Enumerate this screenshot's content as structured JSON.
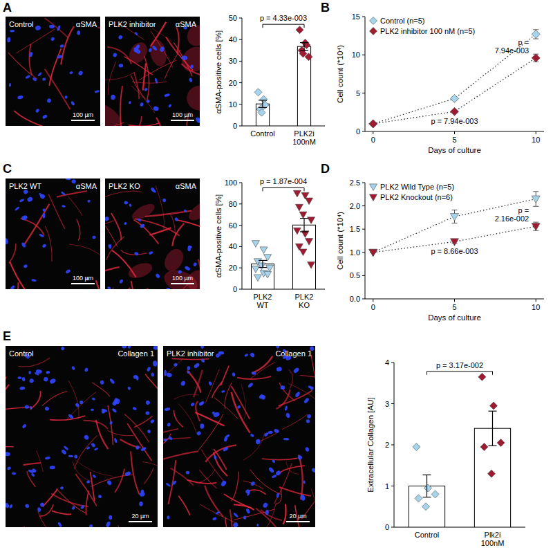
{
  "panel_labels": [
    "A",
    "B",
    "C",
    "D",
    "E"
  ],
  "images": [
    {
      "label": "Control",
      "stain": "αSMA",
      "scale_bar": "100 µm"
    },
    {
      "label": "PLK2 inhibitor",
      "stain": "αSMA",
      "scale_bar": "100 µm"
    },
    {
      "label": "PLK2 WT",
      "stain": "αSMA",
      "scale_bar": "100 µm"
    },
    {
      "label": "PLK2 KO",
      "stain": "αSMA",
      "scale_bar": "100 µm"
    },
    {
      "label": "Control",
      "stain": "Collagen 1",
      "scale_bar": "20 µm"
    },
    {
      "label": "PLK2 inhibitor",
      "stain": "Collagen 1",
      "scale_bar": "20 µm"
    }
  ],
  "chart_data": [
    {
      "type": "bar",
      "ylabel": "αSMA-positive cells [%]",
      "categories": [
        "Control",
        "PLK2i 100nM"
      ],
      "values": [
        10.2,
        36.8
      ],
      "errors": [
        1.7,
        1.8
      ],
      "points": [
        [
          15.6,
          12.3,
          9.7,
          7.8,
          6.2
        ],
        [
          44.5,
          38.5,
          37.5,
          35,
          33.5,
          32
        ]
      ],
      "colors": [
        "#a6d4ec",
        "#9e1b32"
      ],
      "marker": "diamond",
      "annotation": "p = 4.33e-003",
      "ylim": [
        0,
        50
      ],
      "yticks": [
        0,
        10,
        20,
        30,
        40,
        50
      ]
    },
    {
      "type": "line",
      "xlabel": "Days of culture",
      "ylabel": "Cell count (*10⁴)",
      "x": [
        0,
        5,
        10
      ],
      "series": [
        {
          "name": "Control (n=5)",
          "color": "#a6d4ec",
          "marker": "diamond",
          "line_style": "dotted",
          "values": [
            1,
            4.3,
            12.7
          ],
          "errors": [
            0,
            0.2,
            0.6
          ]
        },
        {
          "name": "PLK2 inhibitor 100 nM (n=5)",
          "color": "#9e1b32",
          "marker": "diamond",
          "line_style": "dotted",
          "values": [
            1,
            2.6,
            9.6
          ],
          "errors": [
            0,
            0.15,
            0.5
          ]
        }
      ],
      "annotations": [
        {
          "text": "p = 7.94e-003",
          "x": 5
        },
        {
          "text": "p = 7.94e-003",
          "x": 10
        }
      ],
      "xlim": [
        -0.5,
        10.5
      ],
      "xticks": [
        0,
        5,
        10
      ],
      "ylim": [
        0,
        15
      ],
      "yticks": [
        0,
        5,
        10,
        15
      ],
      "legend": "upper left"
    },
    {
      "type": "bar",
      "ylabel": "αSMA-positive cells [%]",
      "categories": [
        "PLK2 WT",
        "PLK2 KO"
      ],
      "values": [
        23.7,
        60.2
      ],
      "errors": [
        3.3,
        6.3
      ],
      "points": [
        [
          43,
          37,
          30,
          26,
          22,
          20,
          19,
          15,
          14,
          11
        ],
        [
          90,
          88,
          83,
          77,
          70,
          65,
          55,
          52,
          45,
          40,
          35,
          23
        ]
      ],
      "colors": [
        "#a6d4ec",
        "#9e1b32"
      ],
      "marker": "triangle-down",
      "annotation": "p = 1.87e-004",
      "ylim": [
        0,
        100
      ],
      "yticks": [
        0,
        20,
        40,
        60,
        80,
        100
      ]
    },
    {
      "type": "line",
      "xlabel": "Days of culture",
      "ylabel": "Cell count (*10⁴)",
      "x": [
        0,
        5,
        10
      ],
      "series": [
        {
          "name": "PLK2 Wild Type (n=5)",
          "color": "#a6d4ec",
          "marker": "triangle-down",
          "line_style": "dotted",
          "values": [
            1,
            1.77,
            2.15
          ],
          "errors": [
            0,
            0.14,
            0.16
          ]
        },
        {
          "name": "PLK2 Knockout (n=6)",
          "color": "#9e1b32",
          "marker": "triangle-down",
          "line_style": "dotted",
          "values": [
            1,
            1.23,
            1.56
          ],
          "errors": [
            0,
            0.03,
            0.09
          ]
        }
      ],
      "annotations": [
        {
          "text": "p = 8.66e-003",
          "x": 5
        },
        {
          "text": "p = 2.16e-002",
          "x": 10
        }
      ],
      "xlim": [
        -0.5,
        10.5
      ],
      "xticks": [
        0,
        5,
        10
      ],
      "ylim": [
        0,
        2.5
      ],
      "yticks": [
        {
          "value": 0,
          "label": "0.0"
        },
        {
          "value": 0.5,
          "label": "0.5"
        },
        {
          "value": 1,
          "label": "1.0"
        },
        {
          "value": 1.5,
          "label": "1.5"
        },
        {
          "value": 2,
          "label": "2.0"
        },
        {
          "value": 2.5,
          "label": "2.5"
        }
      ],
      "legend": "upper left"
    },
    {
      "type": "bar",
      "ylabel": "Extracellular Collagen [AU]",
      "categories": [
        "Control",
        "Plk2i 100nM"
      ],
      "values": [
        1.0,
        2.4
      ],
      "errors": [
        0.27,
        0.42
      ],
      "points": [
        [
          1.95,
          0.95,
          0.8,
          0.7,
          0.5
        ],
        [
          3.65,
          2.95,
          2.05,
          1.95,
          1.3
        ]
      ],
      "colors": [
        "#a6d4ec",
        "#9e1b32"
      ],
      "marker": "diamond",
      "annotation": "p = 3.17e-002",
      "ylim": [
        0,
        4
      ],
      "yticks": [
        0,
        1,
        2,
        3,
        4
      ]
    }
  ]
}
